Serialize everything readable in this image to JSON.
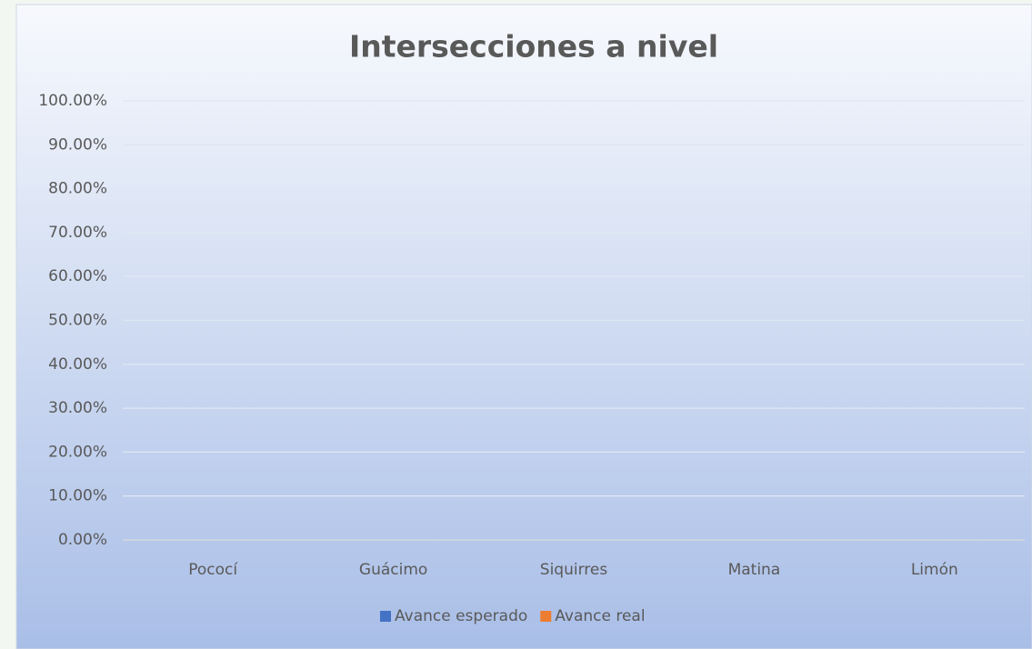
{
  "chart_data": {
    "type": "bar",
    "title": "Intersecciones a nivel",
    "categories": [
      "Pococí",
      "Guácimo",
      "Siquirres",
      "Matina",
      "Limón"
    ],
    "series": [
      {
        "name": "Avance esperado",
        "color": "#4472c4",
        "values": [
          0,
          0,
          0,
          0,
          0
        ]
      },
      {
        "name": "Avance real",
        "color": "#ed7d31",
        "values": [
          0,
          0,
          0,
          0,
          0
        ]
      }
    ],
    "ylim": [
      0,
      100
    ],
    "yticks": [
      {
        "value": 0,
        "label": "0.00%"
      },
      {
        "value": 10,
        "label": "10.00%"
      },
      {
        "value": 20,
        "label": "20.00%"
      },
      {
        "value": 30,
        "label": "30.00%"
      },
      {
        "value": 40,
        "label": "40.00%"
      },
      {
        "value": 50,
        "label": "50.00%"
      },
      {
        "value": 60,
        "label": "60.00%"
      },
      {
        "value": 70,
        "label": "70.00%"
      },
      {
        "value": 80,
        "label": "80.00%"
      },
      {
        "value": 90,
        "label": "90.00%"
      },
      {
        "value": 100,
        "label": "100.00%"
      }
    ],
    "grid": true,
    "legend": "bottom"
  }
}
